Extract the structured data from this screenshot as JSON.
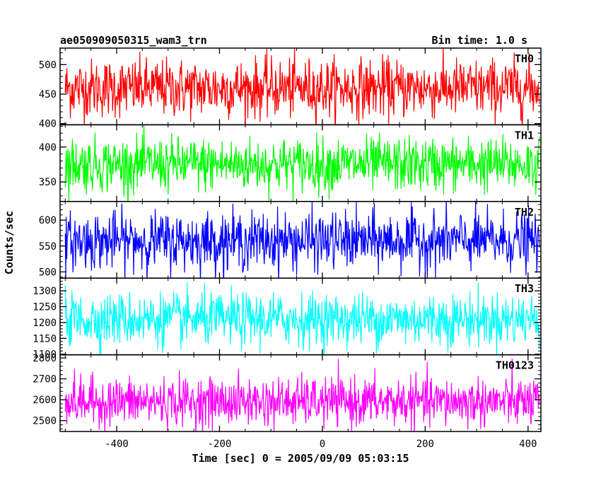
{
  "header": {
    "left_title": "ae050909050315_wam3_trn",
    "right_title": "Bin time: 1.0 s"
  },
  "chart_data": {
    "type": "line",
    "xlabel": "Time [sec] 0 = 2005/09/09 05:03:15",
    "ylabel": "Counts/sec",
    "xlim": [
      -510,
      425
    ],
    "x_ticks": [
      -400,
      -200,
      0,
      200,
      400
    ],
    "x_range_data": [
      -500,
      422
    ],
    "bin_time": 1.0,
    "panels": [
      {
        "name": "TH0",
        "color": "#ff0000",
        "mean": 460,
        "amp": 45,
        "ylim": [
          398,
          528
        ],
        "y_ticks": [
          400,
          450,
          500
        ]
      },
      {
        "name": "TH1",
        "color": "#00ff00",
        "mean": 375,
        "amp": 35,
        "ylim": [
          322,
          432
        ],
        "y_ticks": [
          350,
          400
        ]
      },
      {
        "name": "TH2",
        "color": "#0000ff",
        "mean": 560,
        "amp": 50,
        "ylim": [
          488,
          636
        ],
        "y_ticks": [
          500,
          550,
          600
        ]
      },
      {
        "name": "TH3",
        "color": "#00ffff",
        "mean": 1210,
        "amp": 75,
        "ylim": [
          1098,
          1340
        ],
        "y_ticks": [
          1100,
          1150,
          1200,
          1250,
          1300
        ]
      },
      {
        "name": "TH0123",
        "color": "#ff00ff",
        "mean": 2590,
        "amp": 105,
        "ylim": [
          2448,
          2815
        ],
        "y_ticks": [
          2500,
          2600,
          2700,
          2800
        ]
      }
    ]
  }
}
